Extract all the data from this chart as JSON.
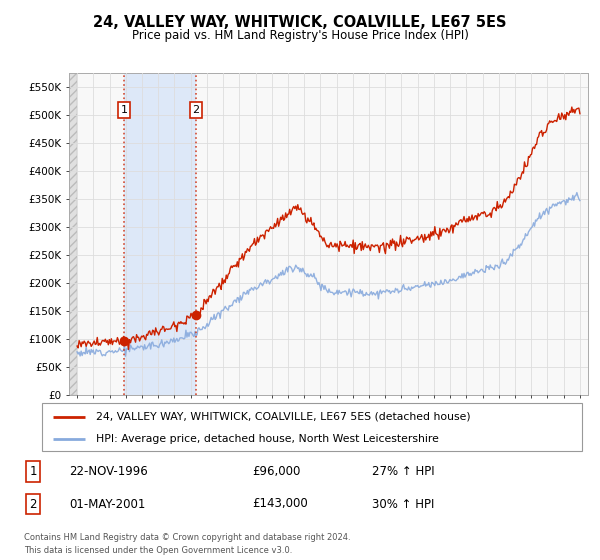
{
  "title": "24, VALLEY WAY, WHITWICK, COALVILLE, LE67 5ES",
  "subtitle": "Price paid vs. HM Land Registry's House Price Index (HPI)",
  "legend_line1": "24, VALLEY WAY, WHITWICK, COALVILLE, LE67 5ES (detached house)",
  "legend_line2": "HPI: Average price, detached house, North West Leicestershire",
  "footnote1": "Contains HM Land Registry data © Crown copyright and database right 2024.",
  "footnote2": "This data is licensed under the Open Government Licence v3.0.",
  "sale1_label": "1",
  "sale1_date": "22-NOV-1996",
  "sale1_price": "£96,000",
  "sale1_hpi": "27% ↑ HPI",
  "sale2_label": "2",
  "sale2_date": "01-MAY-2001",
  "sale2_price": "£143,000",
  "sale2_hpi": "30% ↑ HPI",
  "sale1_year": 1996.9,
  "sale1_value": 96000,
  "sale2_year": 2001.33,
  "sale2_value": 143000,
  "red_color": "#cc2200",
  "blue_color": "#88aadd",
  "highlight_color": "#dde8f8",
  "grid_color": "#dddddd",
  "background_color": "#ffffff",
  "plot_bg_color": "#f8f8f8",
  "hatch_bg_color": "#e0e0e0",
  "ylim": [
    0,
    575000
  ],
  "yticks": [
    0,
    50000,
    100000,
    150000,
    200000,
    250000,
    300000,
    350000,
    400000,
    450000,
    500000,
    550000
  ],
  "ytick_labels": [
    "£0",
    "£50K",
    "£100K",
    "£150K",
    "£200K",
    "£250K",
    "£300K",
    "£350K",
    "£400K",
    "£450K",
    "£500K",
    "£550K"
  ],
  "xlim_start": 1993.5,
  "xlim_end": 2025.5,
  "xtick_years": [
    1994,
    1995,
    1996,
    1997,
    1998,
    1999,
    2000,
    2001,
    2002,
    2003,
    2004,
    2005,
    2006,
    2007,
    2008,
    2009,
    2010,
    2011,
    2012,
    2013,
    2014,
    2015,
    2016,
    2017,
    2018,
    2019,
    2020,
    2021,
    2022,
    2023,
    2024,
    2025
  ]
}
